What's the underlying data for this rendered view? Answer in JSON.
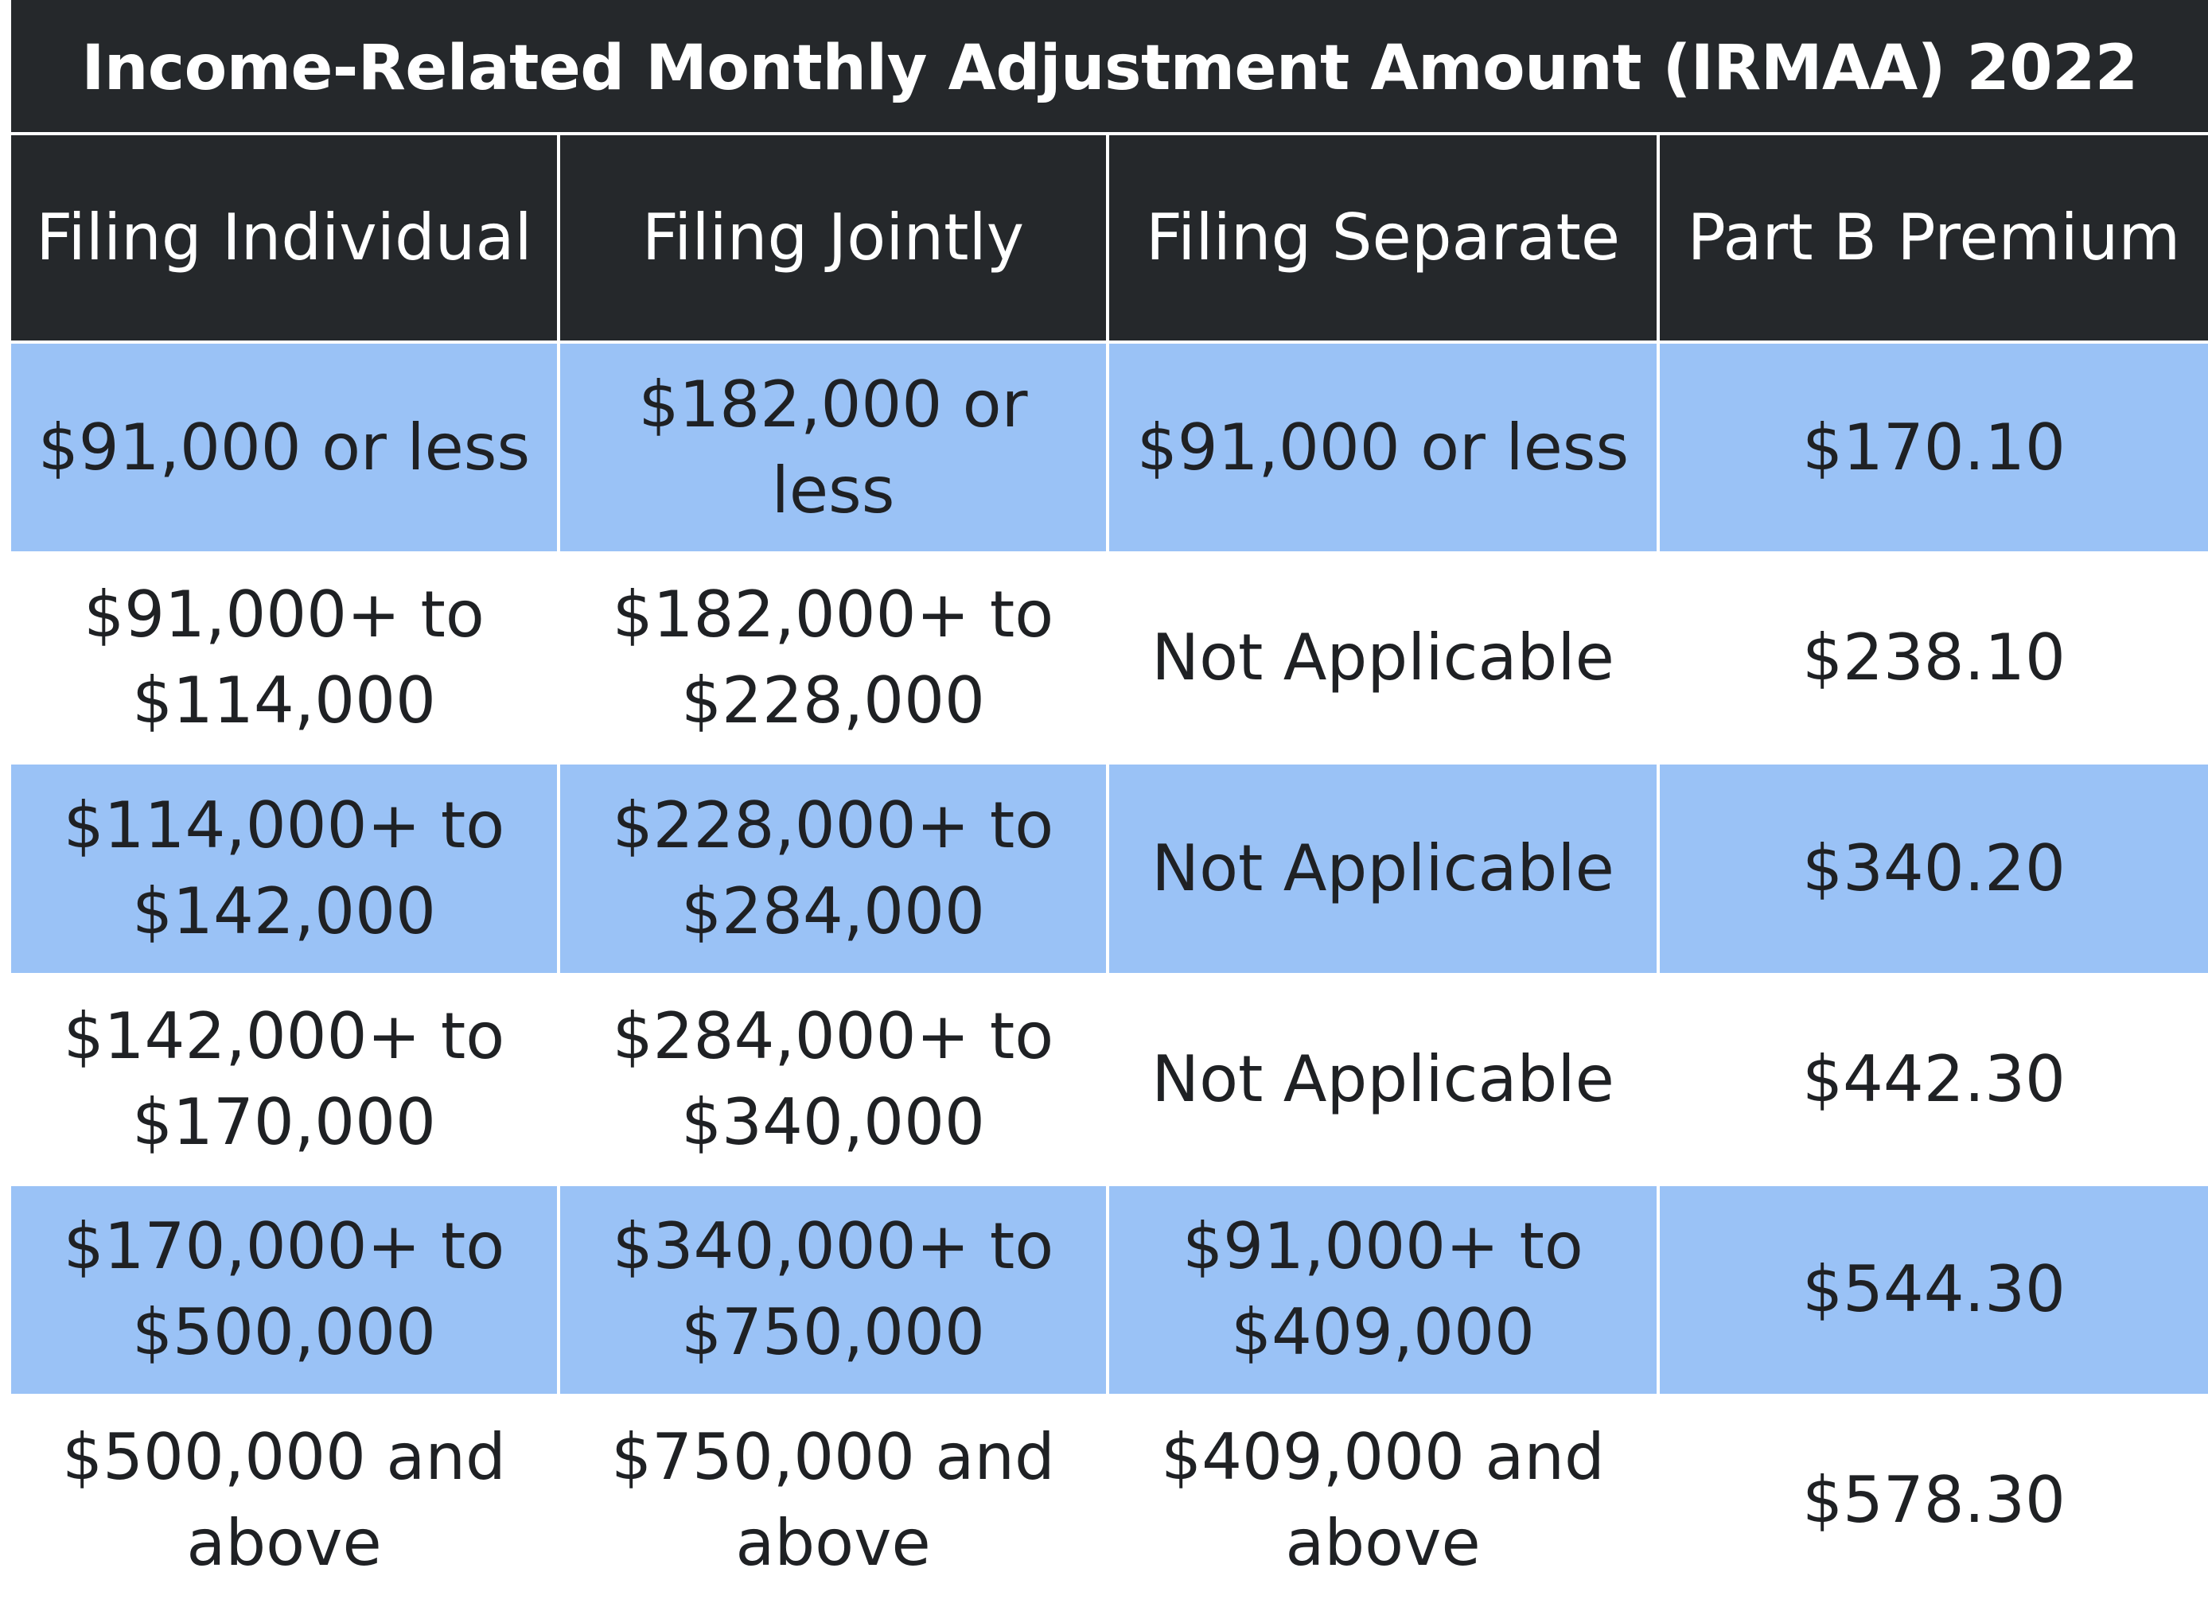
{
  "title": "Income-Related Monthly Adjustment Amount (IRMAA) 2022",
  "columns": [
    "Filing Individual",
    "Filing Jointly",
    "Filing Separate",
    "Part B Premium"
  ],
  "rows": [
    [
      "$91,000 or less",
      "$182,000 or less",
      "$91,000 or less",
      "$170.10"
    ],
    [
      "$91,000+ to $114,000",
      "$182,000+ to $228,000",
      "Not Applicable",
      "$238.10"
    ],
    [
      "$114,000+ to $142,000",
      "$228,000+ to $284,000",
      "Not Applicable",
      "$340.20"
    ],
    [
      "$142,000+ to $170,000",
      "$284,000+ to $340,000",
      "Not Applicable",
      "$442.30"
    ],
    [
      "$170,000+ to $500,000",
      "$340,000+ to $750,000",
      "$91,000+ to $409,000",
      "$544.30"
    ],
    [
      "$500,000 and above",
      "$750,000 and above",
      "$409,000 and above",
      "$578.30"
    ]
  ],
  "colors": {
    "header_background": "#25282b",
    "header_text": "#ffffff",
    "row_blue": "#9ac2f6",
    "row_white": "#ffffff",
    "body_text": "#1f2124"
  }
}
